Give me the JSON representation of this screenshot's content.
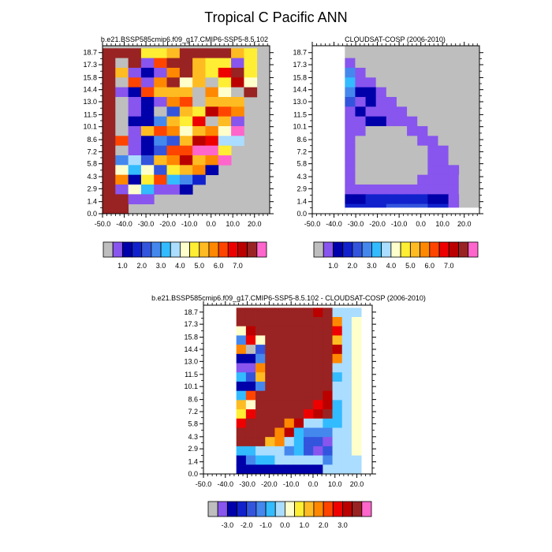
{
  "title": "Tropical C Pacific ANN",
  "chart_data": [
    {
      "type": "heatmap",
      "id": "model",
      "subtitle": "b.e21.BSSP585cmip6.f09_g17.CMIP6-SSP5-8.5.102",
      "x_ticks": [
        "-50.0",
        "-40.0",
        "-30.0",
        "-20.0",
        "-10.0",
        "0.0",
        "10.0",
        "20.0"
      ],
      "y_ticks": [
        "0.0",
        "1.4",
        "2.9",
        "4.3",
        "5.8",
        "7.2",
        "8.6",
        "10.1",
        "11.5",
        "13.0",
        "14.4",
        "15.8",
        "17.3",
        "18.7"
      ],
      "xlim": [
        -50,
        27
      ],
      "ylim": [
        0,
        19.5
      ],
      "colorbar_labels": [
        "1.0",
        "2.0",
        "3.0",
        "4.0",
        "5.0",
        "6.0",
        "7.0"
      ],
      "colors": [
        "#ff66cc",
        "#8855ee",
        "#0000aa",
        "#1122cc",
        "#3355dd",
        "#4488ee",
        "#33bbff",
        "#aaddff",
        "#ffffcc",
        "#ffee33",
        "#ffbb22",
        "#ff8800",
        "#ff4400",
        "#ee0000",
        "#bb0000",
        "#992222",
        "#ff66cc"
      ],
      "missing_color": "#bebebe",
      "missing_region": "lower-right",
      "grid": [
        "PPPJJKPPPPKJ.",
        "PYPBMPPKJJBJ.",
        "PKBCBLPKJNPJ.",
        "PVMBLPIKRJOI.",
        "PBCMKKKRLIRP.",
        "PVBCBLMRKKK..",
        "PVBCVEKJOML..",
        "PVCCFKJNRKB..",
        "PVBKMLIKLIA..",
        "PMBCFEKONHH..",
        "PSBCEMMQQJ...",
        "PFHEKLOKLA...",
        "PIGIEJKLC....",
        "PLCJMGFD.....",
        "PBIGBBC......",
        "PPBB.........",
        "PP..........."
      ]
    },
    {
      "type": "heatmap",
      "id": "obs",
      "subtitle": "CLOUDSAT-COSP (2006-2010)",
      "x_ticks": [
        "-50.0",
        "-40.0",
        "-30.0",
        "-20.0",
        "-10.0",
        "0.0",
        "10.0",
        "20.0"
      ],
      "y_ticks": [
        "0.0",
        "1.4",
        "2.9",
        "4.3",
        "5.8",
        "7.2",
        "8.6",
        "10.1",
        "11.5",
        "13.0",
        "14.4",
        "15.8",
        "17.3",
        "18.7"
      ],
      "xlim": [
        -50,
        27
      ],
      "ylim": [
        0,
        19.5
      ],
      "colorbar_labels": [
        "1.0",
        "2.0",
        "3.0",
        "4.0",
        "5.0",
        "6.0",
        "7.0"
      ],
      "colors": [
        "#ff66cc",
        "#8855ee",
        "#0000aa",
        "#1122cc",
        "#3355dd",
        "#4488ee",
        "#33bbff",
        "#aaddff",
        "#ffffcc",
        "#ffee33",
        "#ffbb22",
        "#ff8800",
        "#ff4400",
        "#ee0000",
        "#bb0000",
        "#992222",
        "#ff66cc"
      ],
      "missing_color": "#bebebe",
      "missing_region": "top and right",
      "grid": [
        "V............",
        "BV...........",
        "FBV..........",
        "GBBV.........",
        "FCCBV........",
        "EBCBBV.......",
        "BCBBBBV......",
        "BBCCBBBV.....",
        "BBVVVVBBV....",
        "BVVVVVVBBV...",
        "BVVVVVVVBBV..",
        "BVVVVVVVBBV..",
        "BVVVVVVVBBB..",
        "BVVVVVVBBBBV.",
        "BBBBBBBBBBBV.",
        "CCDDDDDDCCB..",
        "DDDDEEEEDDB.."
      ]
    },
    {
      "type": "heatmap",
      "id": "diff",
      "subtitle": "b.e21.BSSP585cmip6.f09_g17.CMIP6-SSP5-8.5.102 - CLOUDSAT-COSP (2006-2010)",
      "x_ticks": [
        "-50.0",
        "-40.0",
        "-30.0",
        "-20.0",
        "-10.0",
        "0.0",
        "10.0",
        "20.0"
      ],
      "y_ticks": [
        "0.0",
        "1.4",
        "2.9",
        "4.3",
        "5.8",
        "7.2",
        "8.6",
        "10.1",
        "11.5",
        "13.0",
        "14.4",
        "15.8",
        "17.3",
        "18.7"
      ],
      "xlim": [
        -50,
        27
      ],
      "ylim": [
        0,
        19.5
      ],
      "colorbar_labels": [
        "-3.0",
        "-2.0",
        "-1.0",
        "0.0",
        "1.0",
        "2.0",
        "3.0"
      ],
      "colors": [
        "#ff66cc",
        "#8855ee",
        "#0000aa",
        "#1122cc",
        "#3355dd",
        "#4488ee",
        "#33bbff",
        "#aaddff",
        "#ffffcc",
        "#ffee33",
        "#ffbb22",
        "#ff8800",
        "#ff4400",
        "#ee0000",
        "#bb0000",
        "#992222",
        "#ff66cc"
      ],
      "missing_color": "#bebebe",
      "missing_region": "none",
      "grid": [
        "PPPPPPPPOPHHH",
        "PPPPPPPPPPLHI",
        "IOPPPPPPPPNHI",
        "FNIPPPPPPPKHI",
        "LVEPPPPPPPOHI",
        "CCFPPPPPPPLHI",
        "BBLPPPPPPPHHI",
        "GEKPPPPPPPGHI",
        "CCFPPPPPPPHHI",
        "GMPPPPPPPOHHI",
        "KIPPPPPPNOGHI",
        "JNPPPPPNOPGHI",
        "NPPPPLOHHGGHI",
        "PPPPLOGFFFHHI",
        "PPPKLHGEEBHHI",
        "GGHHHFGEBEHHI",
        "CFGGHHHHHFHHH",
        "CCCCCCCCCHHHH"
      ]
    }
  ]
}
